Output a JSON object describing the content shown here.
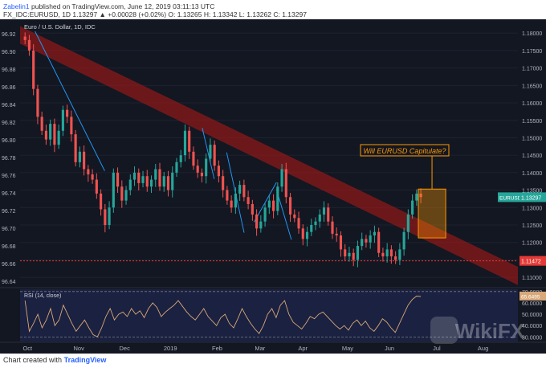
{
  "header": {
    "author": "Zabelin1",
    "published": "published on TradingView.com, June 12, 2019 03:11:13 UTC",
    "symbol_line": "FX_IDC:EURUSD, 1D 1.13297 ▲ +0.00028 (+0.02%) O: 1.13265 H: 1.13342 L: 1.13262 C: 1.13297"
  },
  "footer": {
    "created_with": "Chart created with",
    "brand": "TradingView"
  },
  "chart_data": [
    {
      "type": "line",
      "title": "Euro / U.S. Dollar, 1D, IDC",
      "x_labels": [
        "Oct",
        "Nov",
        "Dec",
        "2019",
        "Feb",
        "Mar",
        "Apr",
        "May",
        "Jun",
        "Jul",
        "Aug"
      ],
      "left_ticks": [
        "96.92",
        "96.90",
        "96.88",
        "96.86",
        "96.84",
        "96.82",
        "96.80",
        "96.78",
        "96.76",
        "96.74",
        "96.72",
        "96.70",
        "96.68",
        "96.66",
        "96.64"
      ],
      "right_ticks": [
        "1.18000",
        "1.17500",
        "1.17000",
        "1.16500",
        "1.16000",
        "1.15500",
        "1.15000",
        "1.14500",
        "1.14000",
        "1.13500",
        "1.13000",
        "1.12500",
        "1.12000",
        "1.11500",
        "1.11000"
      ],
      "ylim": [
        1.1075,
        1.1835
      ],
      "price_label": "EURUSD",
      "last_price": "1.13297",
      "support_level": "1.11472",
      "support_value": 1.11472,
      "annotation": "Will EURUSD Capitulate?",
      "channel_upper": [
        [
          0,
          1.182
        ],
        [
          1,
          1.113
        ]
      ],
      "channel_lower": [
        [
          0,
          1.177
        ],
        [
          1,
          1.1078
        ]
      ],
      "trendlines": [
        [
          [
            0.03,
            1.1805
          ],
          [
            0.17,
            1.1405
          ]
        ],
        [
          [
            0.366,
            1.1528
          ],
          [
            0.39,
            1.1382
          ]
        ],
        [
          [
            0.415,
            1.1458
          ],
          [
            0.45,
            1.1228
          ]
        ],
        [
          [
            0.47,
            1.1258
          ],
          [
            0.515,
            1.1372
          ]
        ],
        [
          [
            0.515,
            1.1352
          ],
          [
            0.545,
            1.1208
          ]
        ]
      ],
      "highlight_box": {
        "x": [
          0.8,
          0.855
        ],
        "y": [
          1.1213,
          1.1353
        ]
      },
      "series": [
        {
          "name": "EURUSD",
          "values": [
            1.178,
            1.175,
            1.164,
            1.156,
            1.152,
            1.1495,
            1.154,
            1.148,
            1.152,
            1.158,
            1.156,
            1.151,
            1.143,
            1.146,
            1.141,
            1.1395,
            1.138,
            1.134,
            1.1295,
            1.125,
            1.13,
            1.14,
            1.136,
            1.132,
            1.135,
            1.138,
            1.14,
            1.137,
            1.139,
            1.136,
            1.138,
            1.141,
            1.136,
            1.139,
            1.135,
            1.14,
            1.143,
            1.145,
            1.152,
            1.146,
            1.142,
            1.14,
            1.139,
            1.144,
            1.148,
            1.142,
            1.139,
            1.135,
            1.132,
            1.13,
            1.134,
            1.1365,
            1.133,
            1.131,
            1.128,
            1.124,
            1.126,
            1.13,
            1.132,
            1.129,
            1.136,
            1.141,
            1.133,
            1.128,
            1.127,
            1.124,
            1.121,
            1.123,
            1.125,
            1.126,
            1.128,
            1.13,
            1.126,
            1.1225,
            1.122,
            1.118,
            1.116,
            1.117,
            1.115,
            1.119,
            1.121,
            1.12,
            1.122,
            1.123,
            1.117,
            1.116,
            1.118,
            1.116,
            1.115,
            1.118,
            1.123,
            1.128,
            1.132,
            1.134,
            1.133
          ]
        }
      ]
    },
    {
      "type": "line",
      "title": "RSI (14, close)",
      "right_ticks": [
        "70.0000",
        "60.0000",
        "50.0000",
        "40.0000",
        "30.0000"
      ],
      "ylim": [
        26,
        72
      ],
      "last_value": "65.6495",
      "series": [
        {
          "name": "RSI",
          "values": [
            62,
            35,
            42,
            50,
            38,
            45,
            55,
            40,
            45,
            58,
            50,
            42,
            35,
            40,
            45,
            38,
            32,
            30,
            38,
            48,
            55,
            45,
            50,
            52,
            48,
            55,
            50,
            53,
            47,
            55,
            60,
            56,
            48,
            52,
            55,
            58,
            62,
            57,
            52,
            48,
            45,
            50,
            55,
            48,
            44,
            40,
            47,
            50,
            42,
            38,
            46,
            55,
            48,
            42,
            37,
            33,
            40,
            50,
            55,
            47,
            58,
            62,
            50,
            43,
            40,
            37,
            42,
            48,
            46,
            50,
            52,
            48,
            44,
            40,
            37,
            40,
            36,
            42,
            45,
            40,
            44,
            38,
            35,
            40,
            46,
            43,
            38,
            34,
            42,
            50,
            58,
            63,
            66,
            65.6
          ]
        }
      ]
    }
  ],
  "watermark": "WikiFX",
  "colors": {
    "background": "#131722",
    "up": "#26a69a",
    "down": "#ef5350",
    "channel": "#8b1a1a",
    "trendline": "#2196f3",
    "rsi": "#d8a878",
    "annotation": "#ff9800"
  }
}
